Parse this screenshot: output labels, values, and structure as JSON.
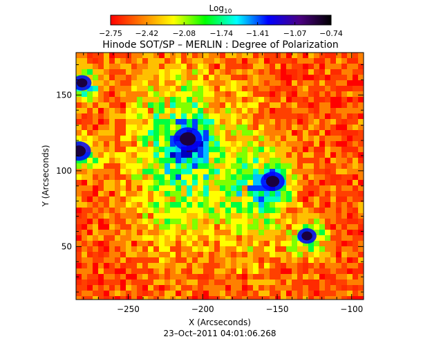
{
  "chart_data": {
    "type": "heatmap",
    "title": "Hinode SOT/SP – MERLIN : Degree of Polarization",
    "colorbar": {
      "label_base": "Log",
      "label_sub": "10",
      "ticks": [
        -2.75,
        -2.42,
        -2.08,
        -1.74,
        -1.41,
        -1.07,
        -0.74
      ],
      "tick_labels": [
        "−2.75",
        "−2.42",
        "−2.08",
        "−1.74",
        "−1.41",
        "−1.07",
        "−0.74"
      ],
      "range": [
        -2.75,
        -0.74
      ],
      "colormap": [
        "#ff0000",
        "#ff7f00",
        "#ffff00",
        "#00ff00",
        "#00ffff",
        "#0000ff",
        "#4b0082",
        "#000000"
      ]
    },
    "xlabel": "X (Arcseconds)",
    "ylabel": "Y (Arcseconds)",
    "xlim": [
      -285,
      -92
    ],
    "ylim": [
      15,
      178
    ],
    "xticks": [
      -250,
      -200,
      -150,
      -100
    ],
    "xtick_labels": [
      "−250",
      "−200",
      "−150",
      "−100"
    ],
    "yticks": [
      50,
      100,
      150
    ],
    "ytick_labels": [
      "50",
      "100",
      "150"
    ],
    "timestamp": "23–Oct–2011 04:01:06.268",
    "features": [
      {
        "type": "sunspot",
        "x": -210,
        "y": 121,
        "radius": 6
      },
      {
        "type": "sunspot",
        "x": -153,
        "y": 93,
        "radius": 5
      },
      {
        "type": "sunspot",
        "x": -130,
        "y": 57,
        "radius": 4
      },
      {
        "type": "sunspot",
        "x": -283,
        "y": 113,
        "radius": 5
      },
      {
        "type": "sunspot",
        "x": -281,
        "y": 158,
        "radius": 4
      }
    ]
  }
}
